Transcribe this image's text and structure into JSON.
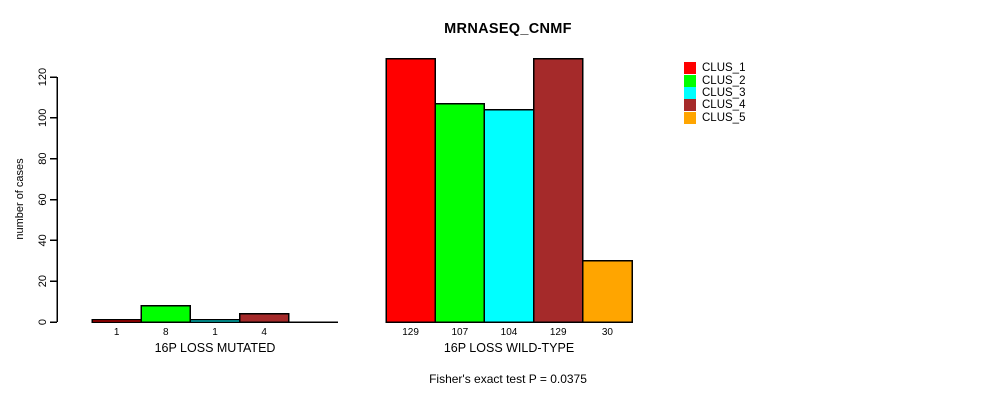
{
  "header": {
    "title": "MRNASEQ_CNMF"
  },
  "chart_data": {
    "type": "bar",
    "title": "MRNASEQ_CNMF",
    "ylabel": "number of cases",
    "ylim": [
      0,
      130
    ],
    "yticks": [
      0,
      20,
      40,
      60,
      80,
      100,
      120
    ],
    "grid": false,
    "legend_position": "right",
    "series": [
      {
        "name": "CLUS_1",
        "color": "#FF0000",
        "values": [
          1,
          129
        ]
      },
      {
        "name": "CLUS_2",
        "color": "#00FF00",
        "values": [
          8,
          107
        ]
      },
      {
        "name": "CLUS_3",
        "color": "#00FFFF",
        "values": [
          1,
          104
        ]
      },
      {
        "name": "CLUS_4",
        "color": "#A52A2A",
        "values": [
          4,
          129
        ]
      },
      {
        "name": "CLUS_5",
        "color": "#FFA500",
        "values": [
          0,
          30
        ]
      }
    ],
    "groups": [
      {
        "label": "16P LOSS MUTATED",
        "values": [
          1,
          8,
          1,
          4,
          0
        ],
        "bar_labels": [
          "1",
          "8",
          "1",
          "4",
          ""
        ]
      },
      {
        "label": "16P LOSS WILD-TYPE",
        "values": [
          129,
          107,
          104,
          129,
          30
        ],
        "bar_labels": [
          "129",
          "107",
          "104",
          "129",
          "30"
        ]
      }
    ],
    "annotation": "Fisher's exact test P = 0.0375"
  }
}
